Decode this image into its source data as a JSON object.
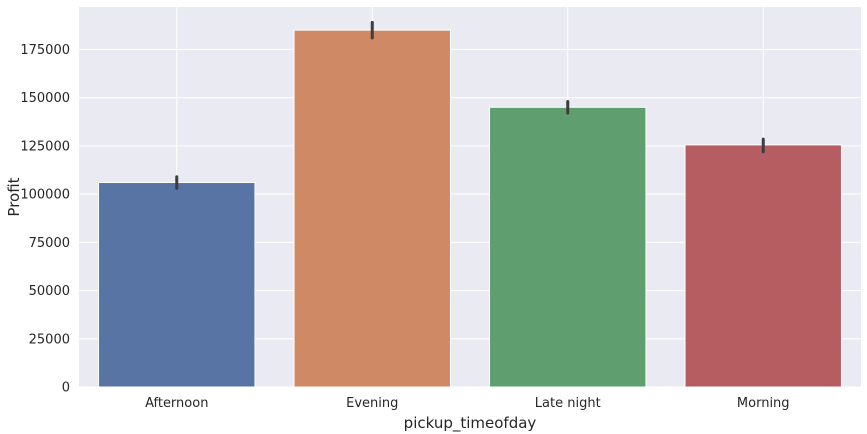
{
  "chart_data": {
    "type": "bar",
    "title": "",
    "xlabel": "pickup_timeofday",
    "ylabel": "Profit",
    "categories": [
      "Afternoon",
      "Evening",
      "Late night",
      "Morning"
    ],
    "values": [
      106000,
      185000,
      145000,
      125500
    ],
    "error_bars": [
      [
        103000,
        109000
      ],
      [
        181000,
        189000
      ],
      [
        142000,
        148000
      ],
      [
        122000,
        128500
      ]
    ],
    "ylim": [
      0,
      197000
    ],
    "yticks": [
      0,
      25000,
      50000,
      75000,
      100000,
      125000,
      150000,
      175000
    ],
    "ytick_labels": [
      "0",
      "25000",
      "50000",
      "75000",
      "100000",
      "125000",
      "150000",
      "175000"
    ],
    "grid": true,
    "colors": [
      "#5874a5",
      "#cf8964",
      "#5f9e6e",
      "#b55d60"
    ],
    "background": "#eaeaf2",
    "gridline_color": "#ffffff",
    "errorbar_color": "#3d3d3d"
  }
}
